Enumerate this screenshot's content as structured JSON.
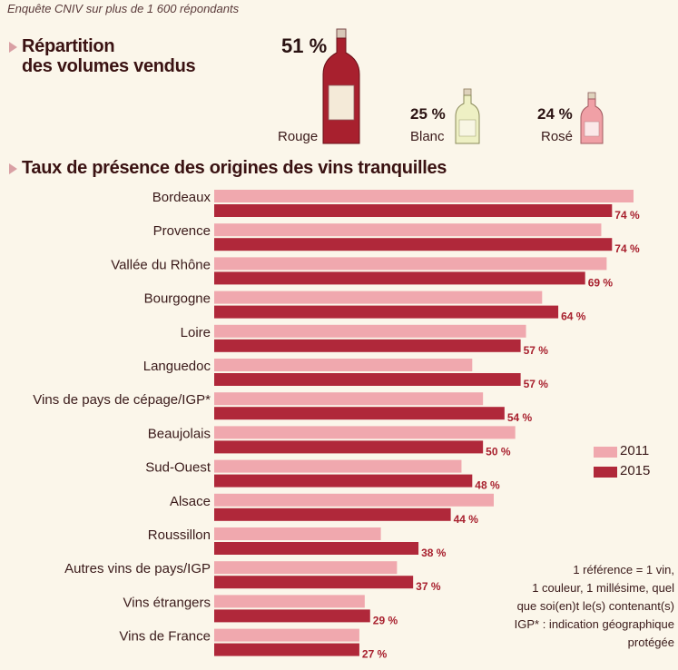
{
  "subtitle": "Enquête CNIV sur plus de 1 600 répondants",
  "volumes": {
    "title_line1": "Répartition",
    "title_line2": "des volumes vendus",
    "items": [
      {
        "label": "Rouge",
        "pct": "51 %",
        "value": 51,
        "color": "#a8202e"
      },
      {
        "label": "Blanc",
        "pct": "25 %",
        "value": 25,
        "color": "#eef0c4"
      },
      {
        "label": "Rosé",
        "pct": "24 %",
        "value": 24,
        "color": "#f0a0a6"
      }
    ]
  },
  "chart_data": {
    "type": "bar",
    "orientation": "horizontal",
    "title": "Taux de présence des origines des vins tranquilles",
    "categories": [
      "Bordeaux",
      "Provence",
      "Vallée du Rhône",
      "Bourgogne",
      "Loire",
      "Languedoc",
      "Vins de pays de cépage/IGP*",
      "Beaujolais",
      "Sud-Ouest",
      "Alsace",
      "Roussillon",
      "Autres vins de pays/IGP",
      "Vins étrangers",
      "Vins de France"
    ],
    "series": [
      {
        "name": "2011",
        "color": "#f0a8ae",
        "values": [
          78,
          72,
          73,
          61,
          58,
          48,
          50,
          56,
          46,
          52,
          31,
          34,
          28,
          27
        ]
      },
      {
        "name": "2015",
        "color": "#b0283a",
        "values": [
          74,
          74,
          69,
          64,
          57,
          57,
          54,
          50,
          48,
          44,
          38,
          37,
          29,
          27
        ]
      }
    ],
    "value_labels_2015": [
      "74 %",
      "74 %",
      "69 %",
      "64 %",
      "57 %",
      "57 %",
      "54 %",
      "50 %",
      "48 %",
      "44 %",
      "38 %",
      "37 %",
      "29 %",
      "27 %"
    ],
    "xlim": [
      0,
      78
    ],
    "legend_position": "right"
  },
  "note": [
    "1 référence = 1 vin,",
    "1 couleur, 1 millésime, quel",
    "que soi(en)t le(s) contenant(s)",
    "IGP* : indication géographique",
    "protégée"
  ]
}
